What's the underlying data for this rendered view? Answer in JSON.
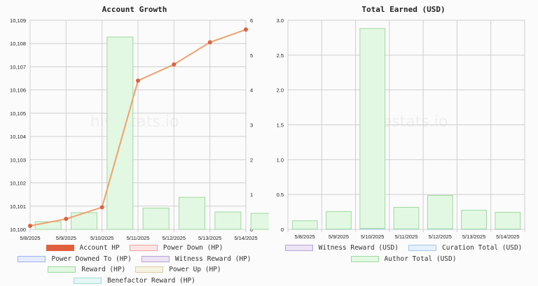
{
  "charts": {
    "left": {
      "title": "Account Growth",
      "watermark": "hivestats.io",
      "legend": [
        {
          "label": "Account HP",
          "fill": "#e0603d",
          "stroke": "#e0603d"
        },
        {
          "label": "Power Down (HP)",
          "fill": "#fde4e4",
          "stroke": "#f0a0a0"
        },
        {
          "label": "Power Downed To (HP)",
          "fill": "#e4ecfd",
          "stroke": "#9db3ef"
        },
        {
          "label": "Witness Reward (HP)",
          "fill": "#ece4f4",
          "stroke": "#b9a3d4"
        },
        {
          "label": "Reward (HP)",
          "fill": "#e2f8e2",
          "stroke": "#9fd99f"
        },
        {
          "label": "Power Up (HP)",
          "fill": "#f6f3e2",
          "stroke": "#d8cfa2"
        },
        {
          "label": "Benefactor Reward (HP)",
          "fill": "#e4f7f4",
          "stroke": "#a4ddd3"
        }
      ]
    },
    "right": {
      "title": "Total Earned (USD)",
      "watermark": "hivestats.io",
      "legend": [
        {
          "label": "Witness Reward (USD)",
          "fill": "#ece4f4",
          "stroke": "#b9a3d4"
        },
        {
          "label": "Curation Total (USD)",
          "fill": "#e4f0fb",
          "stroke": "#a8c8e8"
        },
        {
          "label": "Author Total (USD)",
          "fill": "#e2f8e2",
          "stroke": "#9fd99f"
        }
      ]
    }
  },
  "chart_data": [
    {
      "type": "bar",
      "title": "Account Growth",
      "categories": [
        "5/8/2025",
        "5/9/2025",
        "5/10/2025",
        "5/11/2025",
        "5/12/2025",
        "5/13/2025",
        "5/14/2025"
      ],
      "y_left_ticks": [
        "10,100",
        "10,101",
        "10,102",
        "10,103",
        "10,104",
        "10,105",
        "10,106",
        "10,107",
        "10,108",
        "10,109"
      ],
      "y_left_lim": [
        10100,
        10109
      ],
      "y_right_ticks": [
        "0",
        "1",
        "2",
        "3",
        "4",
        "5",
        "6"
      ],
      "y_right_lim": [
        0,
        6
      ],
      "grid": true,
      "series": [
        {
          "name": "Account HP",
          "type": "line",
          "axis": "left",
          "color": "#e0603d",
          "line_color": "#f0a070",
          "x": [
            0,
            1,
            2,
            3,
            4,
            5,
            6
          ],
          "values": [
            10100.15,
            10100.45,
            10100.95,
            10106.4,
            10107.1,
            10108.05,
            10108.6
          ]
        },
        {
          "name": "Reward (HP)",
          "type": "bar",
          "axis": "right",
          "color": "#e2f8e2",
          "stroke": "#9fd99f",
          "x": [
            0.5,
            1.5,
            2.5,
            3.5,
            4.5,
            5.5,
            6.5
          ],
          "values": [
            0.22,
            0.48,
            5.52,
            0.61,
            0.92,
            0.5,
            0.46
          ]
        }
      ]
    },
    {
      "type": "bar",
      "title": "Total Earned (USD)",
      "categories": [
        "5/8/2025",
        "5/9/2025",
        "5/10/2025",
        "5/11/2025",
        "5/12/2025",
        "5/13/2025",
        "5/14/2025"
      ],
      "y_ticks": [
        "0",
        "0.5",
        "1.0",
        "1.5",
        "2.0",
        "2.5",
        "3.0"
      ],
      "ylim": [
        0,
        3
      ],
      "grid": true,
      "series": [
        {
          "name": "Author Total (USD)",
          "color": "#e2f8e2",
          "stroke": "#9fd99f",
          "values": [
            0.12,
            0.25,
            2.87,
            0.31,
            0.48,
            0.27,
            0.24
          ]
        },
        {
          "name": "Curation Total (USD)",
          "color": "#e4f0fb",
          "stroke": "#a8c8e8",
          "values": [
            0.003,
            0.005,
            0.012,
            0.006,
            0.007,
            0.005,
            0.005
          ]
        }
      ]
    }
  ]
}
